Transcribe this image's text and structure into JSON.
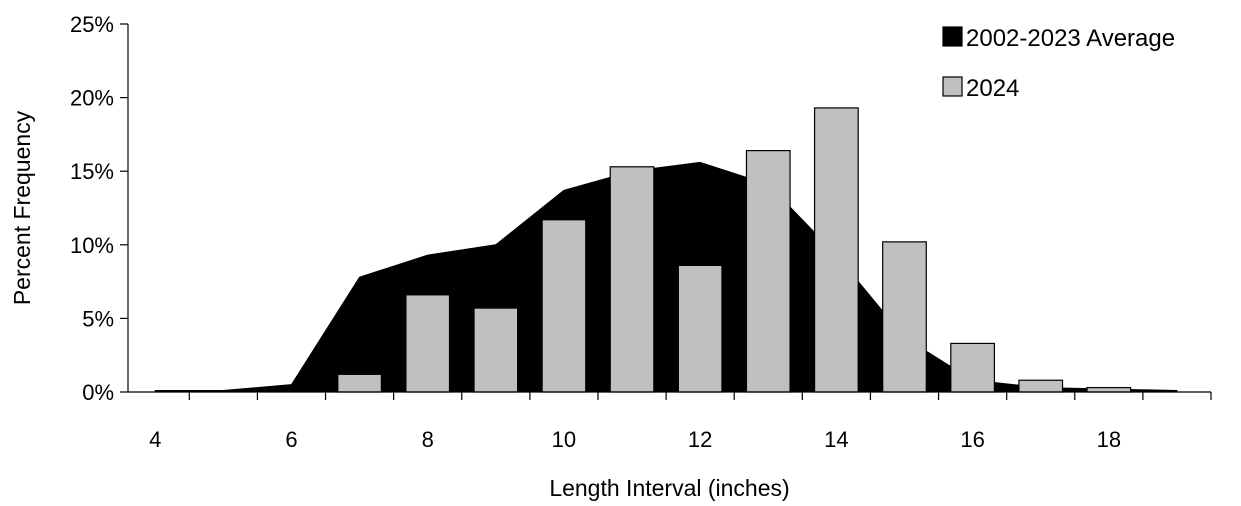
{
  "chart_data": {
    "type": "bar",
    "title": "",
    "xlabel": "Length Interval (inches)",
    "ylabel": "Percent Frequency",
    "x": [
      4,
      5,
      6,
      7,
      8,
      9,
      10,
      11,
      12,
      13,
      14,
      15,
      16,
      17,
      18,
      19
    ],
    "x_tick_labels": [
      "4",
      "6",
      "8",
      "10",
      "12",
      "14",
      "16",
      "18"
    ],
    "y_tick_labels": [
      "0%",
      "5%",
      "10%",
      "15%",
      "20%",
      "25%"
    ],
    "ylim": [
      0,
      25
    ],
    "xlim": [
      3.6,
      19.5
    ],
    "legend_position": "top-right",
    "grid": false,
    "series": [
      {
        "name": "2002-2023 Average",
        "type": "area",
        "color": "#000000",
        "values": [
          0.1,
          0.1,
          0.5,
          7.8,
          9.3,
          10.0,
          13.7,
          15.0,
          15.6,
          14.1,
          9.3,
          3.7,
          0.8,
          0.3,
          0.2,
          0.1
        ]
      },
      {
        "name": "2024",
        "type": "bar",
        "color": "#c0c0c0",
        "x": [
          7,
          8,
          9,
          10,
          11,
          12,
          13,
          14,
          15,
          16,
          17,
          18
        ],
        "values": [
          1.2,
          6.6,
          5.7,
          11.7,
          15.3,
          8.6,
          16.4,
          19.3,
          10.2,
          3.3,
          0.8,
          0.3
        ]
      }
    ]
  }
}
